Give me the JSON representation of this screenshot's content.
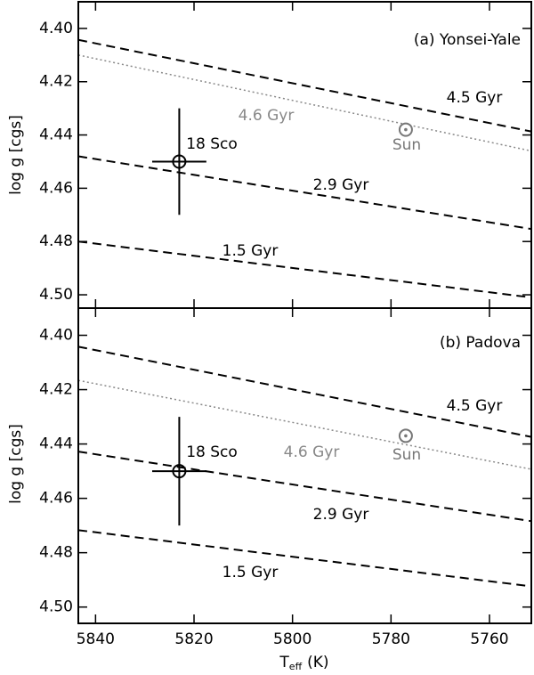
{
  "chart_data": [
    {
      "type": "line",
      "panel_label": "(a) Yonsei-Yale",
      "ylabel": "log g [cgs]",
      "x": [
        5843.5,
        5751.5
      ],
      "xlim": [
        5843.5,
        5751.5
      ],
      "xticks": [
        5840,
        5820,
        5800,
        5780,
        5760
      ],
      "ylim": [
        4.39,
        4.505
      ],
      "yticks": [
        {
          "value": 4.4,
          "label": "4.40"
        },
        {
          "value": 4.42,
          "label": "4.42"
        },
        {
          "value": 4.44,
          "label": "4.44"
        },
        {
          "value": 4.46,
          "label": "4.46"
        },
        {
          "value": 4.48,
          "label": "4.48"
        },
        {
          "value": 4.5,
          "label": "4.50"
        }
      ],
      "series": [
        {
          "name": "4.5 Gyr",
          "color": "#000000",
          "dash": "dashed",
          "values": [
            4.4043,
            4.4387
          ]
        },
        {
          "name": "4.6 Gyr",
          "color": "#888888",
          "dash": "dotted",
          "values": [
            4.41,
            4.446
          ]
        },
        {
          "name": "2.9 Gyr",
          "color": "#000000",
          "dash": "dashed",
          "values": [
            4.448,
            4.4753
          ]
        },
        {
          "name": "1.5 Gyr",
          "color": "#000000",
          "dash": "dashed",
          "values": [
            4.48,
            4.501
          ]
        }
      ],
      "points": [
        {
          "name": "18 Sco",
          "color": "#000000",
          "x": 5823,
          "y": 4.45,
          "xerr": 5.5,
          "yerr": 0.02
        },
        {
          "name": "Sun",
          "color": "#777777",
          "x": 5777,
          "y": 4.438
        }
      ]
    },
    {
      "type": "line",
      "panel_label": "(b) Padova",
      "ylabel": "log g [cgs]",
      "xlabel": {
        "symbol": "T",
        "sub": "eff",
        "unit": "(K)"
      },
      "x": [
        5843.5,
        5751.5
      ],
      "xlim": [
        5843.5,
        5751.5
      ],
      "xticks": [
        5840,
        5820,
        5800,
        5780,
        5760
      ],
      "ylim": [
        4.39,
        4.506
      ],
      "yticks": [
        {
          "value": 4.4,
          "label": "4.40"
        },
        {
          "value": 4.42,
          "label": "4.42"
        },
        {
          "value": 4.44,
          "label": "4.44"
        },
        {
          "value": 4.46,
          "label": "4.46"
        },
        {
          "value": 4.48,
          "label": "4.48"
        },
        {
          "value": 4.5,
          "label": "4.50"
        }
      ],
      "series": [
        {
          "name": "4.5 Gyr",
          "color": "#000000",
          "dash": "dashed",
          "values": [
            4.4042,
            4.4374
          ]
        },
        {
          "name": "4.6 Gyr",
          "color": "#888888",
          "dash": "dotted",
          "values": [
            4.4166,
            4.4493
          ]
        },
        {
          "name": "2.9 Gyr",
          "color": "#000000",
          "dash": "dashed",
          "values": [
            4.4428,
            4.4684
          ]
        },
        {
          "name": "1.5 Gyr",
          "color": "#000000",
          "dash": "dashed",
          "values": [
            4.4717,
            4.4924
          ]
        }
      ],
      "points": [
        {
          "name": "18 Sco",
          "color": "#000000",
          "x": 5823,
          "y": 4.45,
          "xerr": 5.5,
          "yerr": 0.02
        },
        {
          "name": "Sun",
          "color": "#777777",
          "x": 5777,
          "y": 4.437
        }
      ]
    }
  ]
}
